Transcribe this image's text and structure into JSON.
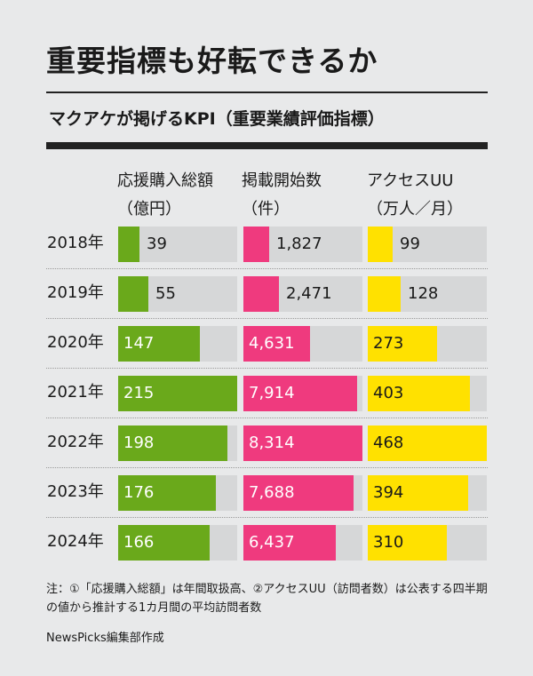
{
  "title": "重要指標も好転できるか",
  "subtitle": "マクアケが掲げるKPI（重要業績評価指標）",
  "columns": [
    {
      "label": "応援購入総額",
      "unit": "（億円）"
    },
    {
      "label": "掲載開始数",
      "unit": "（件）"
    },
    {
      "label": "アクセスUU",
      "unit": "（万人／月）"
    }
  ],
  "note": "注：①「応援購入総額」は年間取扱高、②アクセスUU（訪問者数）は公表する四半期の値から推計する1カ月間の平均訪問者数",
  "credit": "NewsPicks編集部作成",
  "colors": {
    "support": "#6aa91b",
    "listings": "#ef3a7e",
    "access": "#ffe100",
    "track": "#d6d7d8",
    "background": "#e8e9ea"
  },
  "chart_data": {
    "type": "bar",
    "categories": [
      "2018年",
      "2019年",
      "2020年",
      "2021年",
      "2022年",
      "2023年",
      "2024年"
    ],
    "series": [
      {
        "name": "応援購入総額（億円）",
        "values": [
          39,
          55,
          147,
          215,
          198,
          176,
          166
        ],
        "labels": [
          "39",
          "55",
          "147",
          "215",
          "198",
          "176",
          "166"
        ]
      },
      {
        "name": "掲載開始数（件）",
        "values": [
          1827,
          2471,
          4631,
          7914,
          8314,
          7688,
          6437
        ],
        "labels": [
          "1,827",
          "2,471",
          "4,631",
          "7,914",
          "8,314",
          "7,688",
          "6,437"
        ]
      },
      {
        "name": "アクセスUU（万人／月）",
        "values": [
          99,
          128,
          273,
          403,
          468,
          394,
          310
        ],
        "labels": [
          "99",
          "128",
          "273",
          "403",
          "468",
          "394",
          "310"
        ]
      }
    ]
  }
}
